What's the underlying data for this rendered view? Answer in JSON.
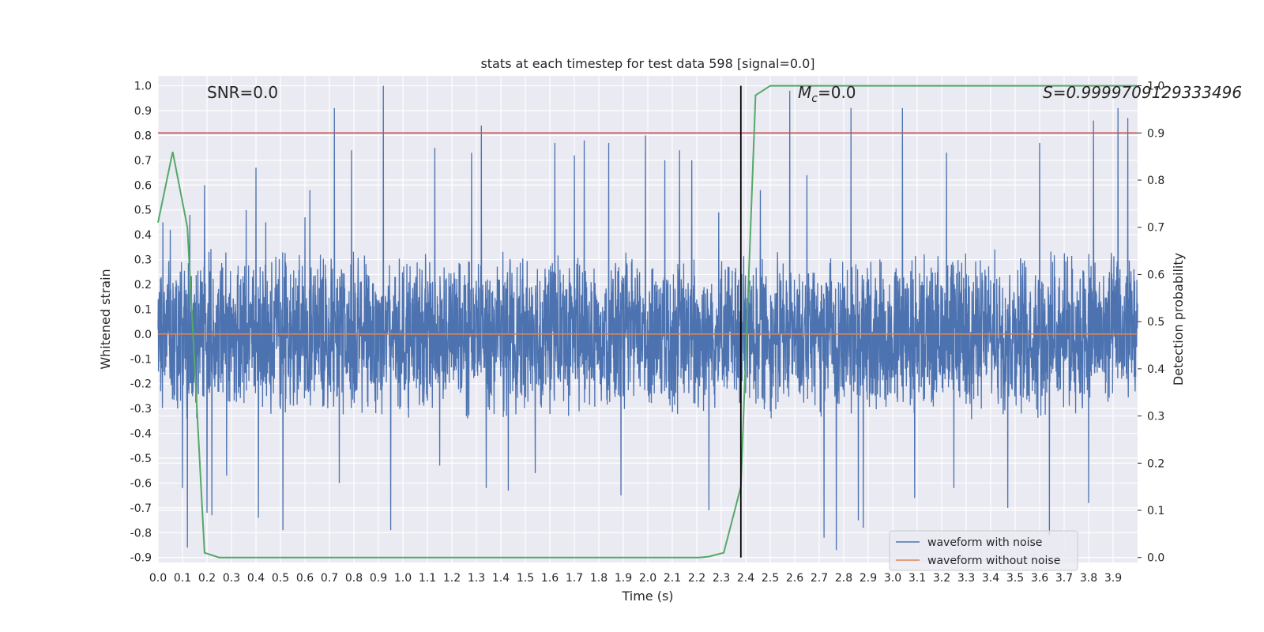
{
  "chart_data": {
    "type": "line",
    "title": "stats at each timestep for test data 598 [signal=0.0]",
    "xlabel": "Time (s)",
    "ylabel": "Whitened strain",
    "ylabel_right": "Detection probability",
    "xlim": [
      0.0,
      4.0
    ],
    "ylim": [
      -0.92,
      1.04
    ],
    "ylim_right": [
      0.0,
      1.0
    ],
    "x_ticks": [
      "0.0",
      "0.1",
      "0.2",
      "0.3",
      "0.4",
      "0.5",
      "0.6",
      "0.7",
      "0.8",
      "0.9",
      "1.0",
      "1.1",
      "1.2",
      "1.3",
      "1.4",
      "1.5",
      "1.6",
      "1.7",
      "1.8",
      "1.9",
      "2.0",
      "2.1",
      "2.2",
      "2.3",
      "2.4",
      "2.5",
      "2.6",
      "2.7",
      "2.8",
      "2.9",
      "3.0",
      "3.1",
      "3.2",
      "3.3",
      "3.4",
      "3.5",
      "3.6",
      "3.7",
      "3.8",
      "3.9"
    ],
    "y_ticks": [
      "1.0",
      "0.9",
      "0.8",
      "0.7",
      "0.6",
      "0.5",
      "0.4",
      "0.3",
      "0.2",
      "0.1",
      "0.0",
      "-0.1",
      "-0.2",
      "-0.3",
      "-0.4",
      "-0.5",
      "-0.6",
      "-0.7",
      "-0.8",
      "-0.9"
    ],
    "y_ticks_right": [
      "1.0",
      "0.9",
      "0.8",
      "0.7",
      "0.6",
      "0.5",
      "0.4",
      "0.3",
      "0.2",
      "0.1",
      "0.0"
    ],
    "grid": true,
    "legend_position": "bottom-right",
    "annotations": {
      "snr": "SNR=0.0",
      "mc_symbol": "M",
      "mc_sub": "c",
      "mc_value": "=0.0",
      "score": "S=0.9999709129333496"
    },
    "series": [
      {
        "name": "waveform with noise",
        "color": "#4c72b0",
        "peaks": [
          [
            0.02,
            0.45
          ],
          [
            0.05,
            0.42
          ],
          [
            0.08,
            -0.3
          ],
          [
            0.1,
            -0.62
          ],
          [
            0.12,
            -0.86
          ],
          [
            0.13,
            0.48
          ],
          [
            0.19,
            0.6
          ],
          [
            0.2,
            -0.72
          ],
          [
            0.22,
            -0.73
          ],
          [
            0.28,
            -0.57
          ],
          [
            0.36,
            0.5
          ],
          [
            0.4,
            0.67
          ],
          [
            0.41,
            -0.74
          ],
          [
            0.44,
            0.45
          ],
          [
            0.51,
            -0.79
          ],
          [
            0.6,
            0.47
          ],
          [
            0.62,
            0.58
          ],
          [
            0.72,
            0.91
          ],
          [
            0.74,
            -0.6
          ],
          [
            0.79,
            0.74
          ],
          [
            0.92,
            1.0
          ],
          [
            0.95,
            -0.79
          ],
          [
            1.13,
            0.75
          ],
          [
            1.15,
            -0.53
          ],
          [
            1.2,
            -0.02
          ],
          [
            1.28,
            0.73
          ],
          [
            1.32,
            0.84
          ],
          [
            1.34,
            -0.62
          ],
          [
            1.43,
            -0.63
          ],
          [
            1.54,
            -0.56
          ],
          [
            1.62,
            0.77
          ],
          [
            1.7,
            0.72
          ],
          [
            1.74,
            0.78
          ],
          [
            1.84,
            0.77
          ],
          [
            1.89,
            -0.65
          ],
          [
            1.99,
            0.8
          ],
          [
            2.07,
            0.7
          ],
          [
            2.13,
            0.74
          ],
          [
            2.18,
            0.7
          ],
          [
            2.25,
            -0.71
          ],
          [
            2.29,
            0.49
          ],
          [
            2.38,
            0.31
          ],
          [
            2.46,
            0.58
          ],
          [
            2.58,
            0.98
          ],
          [
            2.65,
            0.64
          ],
          [
            2.72,
            -0.82
          ],
          [
            2.77,
            -0.87
          ],
          [
            2.83,
            0.91
          ],
          [
            2.86,
            -0.75
          ],
          [
            2.88,
            -0.78
          ],
          [
            3.04,
            0.91
          ],
          [
            3.09,
            -0.66
          ],
          [
            3.22,
            0.73
          ],
          [
            3.25,
            -0.62
          ],
          [
            3.47,
            -0.7
          ],
          [
            3.6,
            0.77
          ],
          [
            3.64,
            -0.81
          ],
          [
            3.8,
            -0.68
          ],
          [
            3.82,
            0.86
          ],
          [
            3.92,
            0.91
          ],
          [
            3.96,
            0.87
          ]
        ],
        "noise_envelope": 0.35
      },
      {
        "name": "waveform without noise",
        "color": "#dd8452",
        "x": [
          0.0,
          4.0
        ],
        "values": [
          0.0,
          0.0
        ]
      },
      {
        "name": "",
        "axis": "right",
        "color": "#55a868",
        "x": [
          0.0,
          0.06,
          0.12,
          0.19,
          0.25,
          2.21,
          2.25,
          2.31,
          2.38,
          2.44,
          2.5,
          4.0
        ],
        "values": [
          0.71,
          0.86,
          0.7,
          0.01,
          0.0,
          0.0,
          0.002,
          0.01,
          0.15,
          0.98,
          1.0,
          1.0
        ]
      }
    ],
    "hlines": [
      {
        "axis": "right",
        "value": 0.9,
        "color": "#c44e52"
      }
    ],
    "vlines": [
      {
        "x": 2.38,
        "y_from": 0.0,
        "y_to": 1.0,
        "axis": "right",
        "color": "#000000"
      }
    ]
  }
}
